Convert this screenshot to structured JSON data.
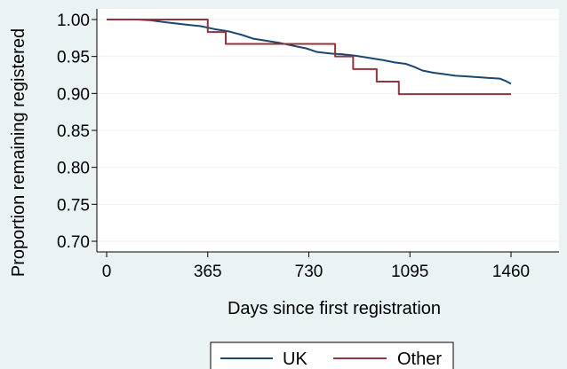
{
  "chart_data": {
    "type": "line",
    "title": "",
    "xlabel": "Days since first registration",
    "ylabel": "Proportion remaining registered",
    "xlim": [
      0,
      1460
    ],
    "ylim": [
      0.7,
      1.0
    ],
    "x_ticks": [
      0,
      365,
      730,
      1095,
      1460
    ],
    "x_tick_labels": [
      "0",
      "365",
      "730",
      "1095",
      "1460"
    ],
    "y_ticks": [
      0.7,
      0.75,
      0.8,
      0.85,
      0.9,
      0.95,
      1.0
    ],
    "y_tick_labels": [
      "0.70",
      "0.75",
      "0.80",
      "0.85",
      "0.90",
      "0.95",
      "1.00"
    ],
    "grid": "horizontal",
    "legend_position": "bottom",
    "colors": {
      "UK": "#1a476f",
      "Other": "#90353b",
      "background": "#eaf2f3",
      "plot_background": "#ffffff",
      "grid": "#eaf2f3"
    },
    "series": [
      {
        "name": "UK",
        "style": "smooth",
        "x": [
          0,
          110,
          160,
          220,
          290,
          340,
          390,
          440,
          490,
          530,
          580,
          630,
          680,
          720,
          760,
          810,
          850,
          900,
          950,
          1000,
          1040,
          1080,
          1110,
          1140,
          1180,
          1220,
          1260,
          1300,
          1340,
          1380,
          1420,
          1440,
          1460
        ],
        "y": [
          1.0,
          1.0,
          0.999,
          0.996,
          0.993,
          0.991,
          0.987,
          0.984,
          0.979,
          0.974,
          0.971,
          0.968,
          0.964,
          0.961,
          0.956,
          0.954,
          0.953,
          0.951,
          0.948,
          0.945,
          0.942,
          0.94,
          0.936,
          0.931,
          0.928,
          0.926,
          0.924,
          0.923,
          0.922,
          0.921,
          0.92,
          0.917,
          0.913
        ]
      },
      {
        "name": "Other",
        "style": "step",
        "x": [
          0,
          365,
          430,
          825,
          890,
          975,
          1055,
          1460
        ],
        "y": [
          1.0,
          0.983,
          0.967,
          0.95,
          0.933,
          0.916,
          0.899,
          0.899
        ]
      }
    ]
  }
}
